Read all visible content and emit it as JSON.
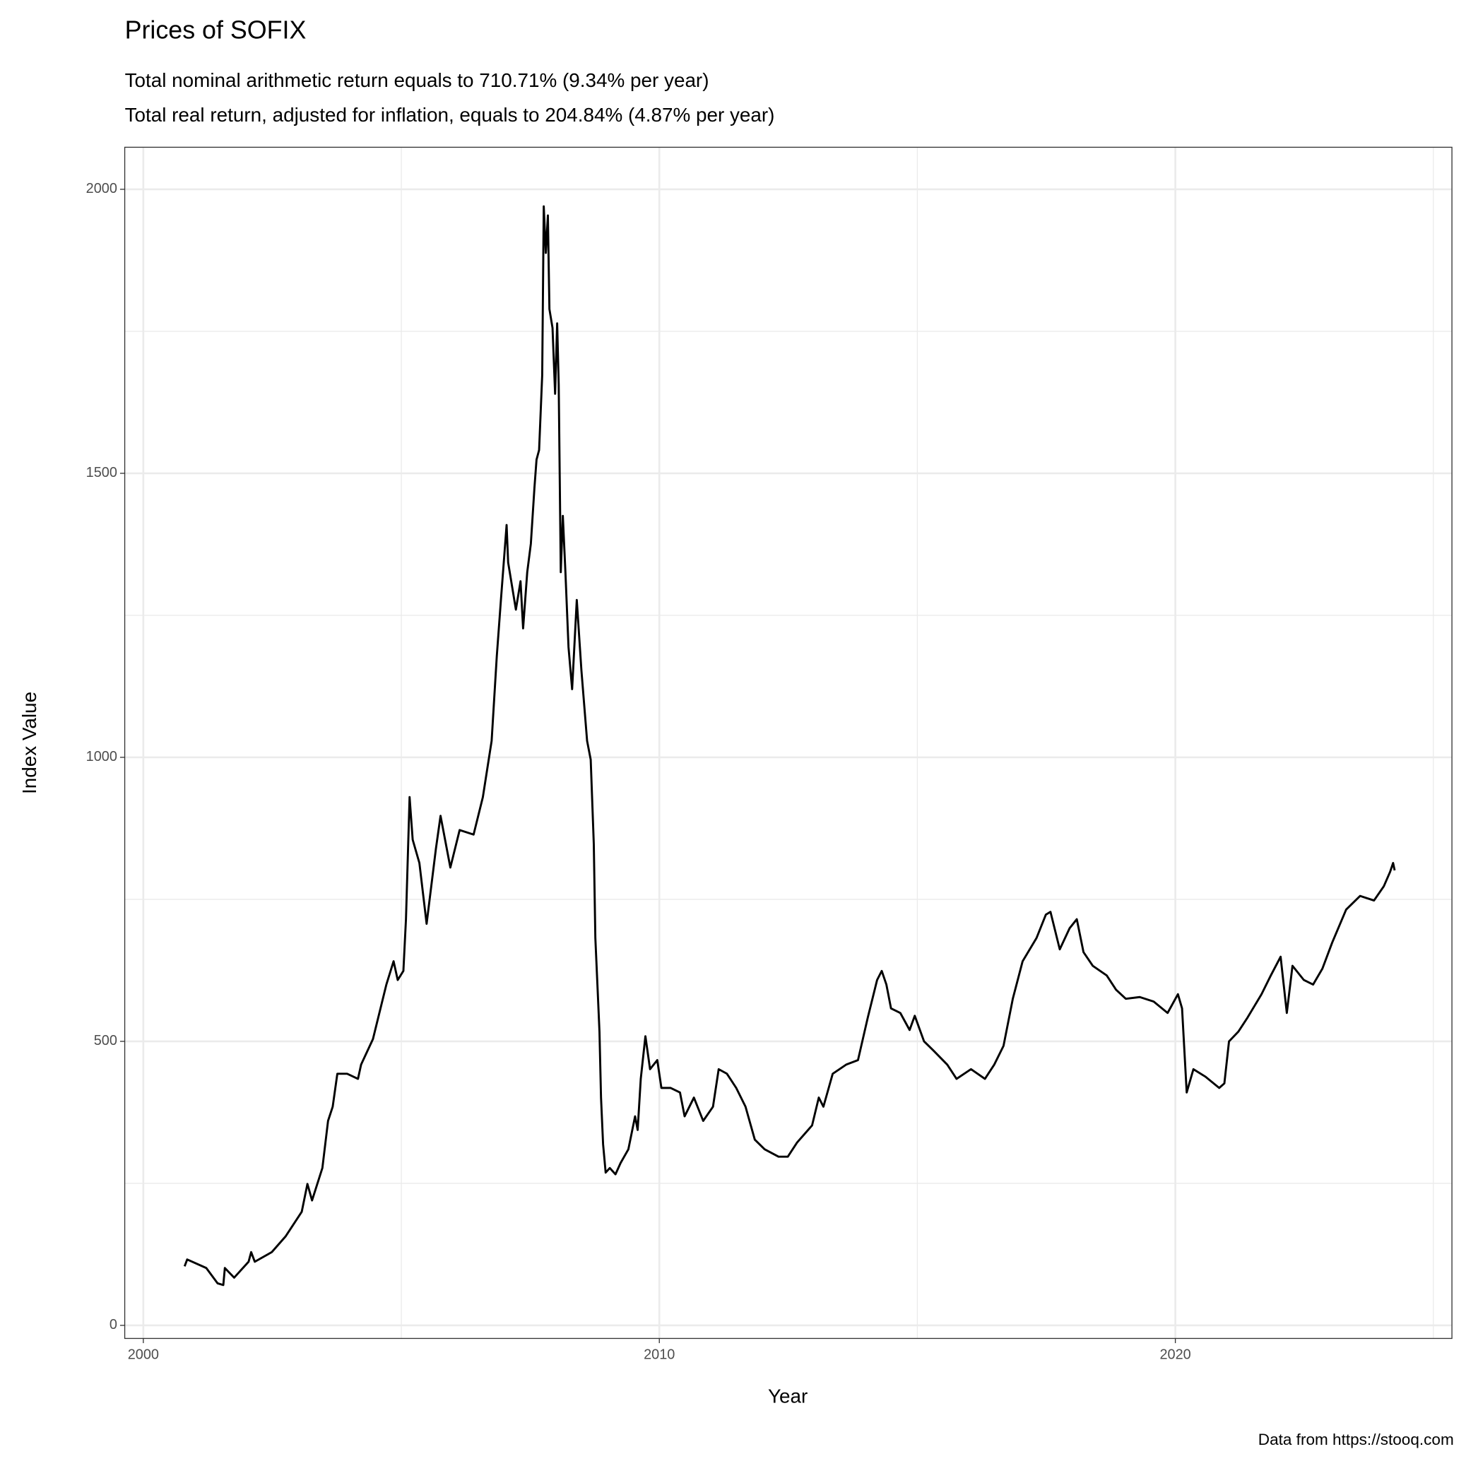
{
  "chart_data": {
    "type": "line",
    "title": "Prices of SOFIX",
    "subtitle": [
      "Total nominal arithmetic return equals to 710.71% (9.34% per year)",
      "Total real return, adjusted for inflation, equals to 204.84% (4.87% per year)"
    ],
    "caption": "Data from https://stooq.com",
    "x_label": "Year",
    "y_label": "Index Value",
    "color": "#000000",
    "grid": true,
    "xlim": [
      1999.64,
      2025.36
    ],
    "ylim": [
      -23,
      2074
    ],
    "xticks": [
      2000,
      2010,
      2020
    ],
    "yticks": [
      0,
      500,
      1000,
      1500,
      2000
    ],
    "xminor": [
      2005,
      2015,
      2025
    ],
    "yminor": [
      250,
      750,
      1250,
      1750
    ],
    "x": [
      2000.8,
      2000.85,
      2001.22,
      2001.44,
      2001.55,
      2001.58,
      2001.76,
      2002.04,
      2002.09,
      2002.16,
      2002.49,
      2002.76,
      2003.07,
      2003.18,
      2003.27,
      2003.47,
      2003.58,
      2003.67,
      2003.76,
      2003.95,
      2004.16,
      2004.22,
      2004.45,
      2004.71,
      2004.85,
      2004.93,
      2005.04,
      2005.09,
      2005.16,
      2005.22,
      2005.35,
      2005.49,
      2005.67,
      2005.76,
      2005.95,
      2006.13,
      2006.4,
      2006.58,
      2006.75,
      2006.85,
      2006.93,
      2007.04,
      2007.07,
      2007.22,
      2007.31,
      2007.36,
      2007.44,
      2007.51,
      2007.58,
      2007.62,
      2007.67,
      2007.73,
      2007.76,
      2007.8,
      2007.84,
      2007.87,
      2007.93,
      2007.98,
      2008.02,
      2008.05,
      2008.07,
      2008.09,
      2008.13,
      2008.18,
      2008.24,
      2008.31,
      2008.4,
      2008.49,
      2008.6,
      2008.67,
      2008.73,
      2008.76,
      2008.8,
      2008.84,
      2008.87,
      2008.91,
      2008.96,
      2009.04,
      2009.15,
      2009.25,
      2009.4,
      2009.53,
      2009.58,
      2009.64,
      2009.73,
      2009.82,
      2009.96,
      2010.04,
      2010.22,
      2010.4,
      2010.49,
      2010.67,
      2010.85,
      2011.04,
      2011.15,
      2011.31,
      2011.49,
      2011.67,
      2011.85,
      2012.04,
      2012.31,
      2012.49,
      2012.67,
      2012.96,
      2013.09,
      2013.18,
      2013.36,
      2013.62,
      2013.85,
      2014.04,
      2014.22,
      2014.31,
      2014.4,
      2014.49,
      2014.67,
      2014.85,
      2014.95,
      2015.13,
      2015.31,
      2015.58,
      2015.76,
      2016.04,
      2016.31,
      2016.49,
      2016.67,
      2016.85,
      2017.04,
      2017.31,
      2017.49,
      2017.58,
      2017.76,
      2017.95,
      2018.09,
      2018.22,
      2018.4,
      2018.67,
      2018.85,
      2019.04,
      2019.31,
      2019.58,
      2019.85,
      2020.05,
      2020.13,
      2020.22,
      2020.35,
      2020.58,
      2020.85,
      2020.95,
      2021.04,
      2021.22,
      2021.4,
      2021.67,
      2021.85,
      2022.04,
      2022.16,
      2022.27,
      2022.49,
      2022.67,
      2022.85,
      2023.04,
      2023.31,
      2023.58,
      2023.85,
      2024.04,
      2024.16,
      2024.22,
      2024.25
    ],
    "values": [
      104,
      116,
      101,
      74,
      71,
      101,
      84,
      112,
      129,
      112,
      129,
      157,
      200,
      249,
      220,
      277,
      360,
      385,
      443,
      443,
      434,
      459,
      504,
      600,
      641,
      608,
      624,
      715,
      930,
      855,
      814,
      707,
      839,
      897,
      806,
      872,
      864,
      930,
      1029,
      1178,
      1277,
      1409,
      1343,
      1260,
      1310,
      1227,
      1326,
      1376,
      1475,
      1524,
      1541,
      1673,
      1970,
      1888,
      1954,
      1789,
      1756,
      1640,
      1764,
      1656,
      1491,
      1326,
      1425,
      1326,
      1194,
      1120,
      1277,
      1153,
      1029,
      996,
      847,
      682,
      600,
      517,
      401,
      319,
      269,
      277,
      266,
      286,
      310,
      368,
      344,
      434,
      509,
      451,
      467,
      418,
      418,
      410,
      368,
      401,
      360,
      385,
      451,
      443,
      418,
      385,
      327,
      310,
      297,
      297,
      322,
      352,
      401,
      385,
      443,
      459,
      467,
      542,
      608,
      624,
      600,
      558,
      550,
      520,
      545,
      500,
      484,
      459,
      434,
      451,
      434,
      459,
      492,
      575,
      641,
      682,
      723,
      728,
      662,
      699,
      715,
      657,
      633,
      616,
      591,
      575,
      578,
      570,
      550,
      583,
      558,
      410,
      451,
      438,
      418,
      426,
      500,
      517,
      542,
      583,
      616,
      649,
      550,
      633,
      608,
      600,
      628,
      674,
      732,
      756,
      748,
      773,
      798,
      814,
      801
    ]
  }
}
